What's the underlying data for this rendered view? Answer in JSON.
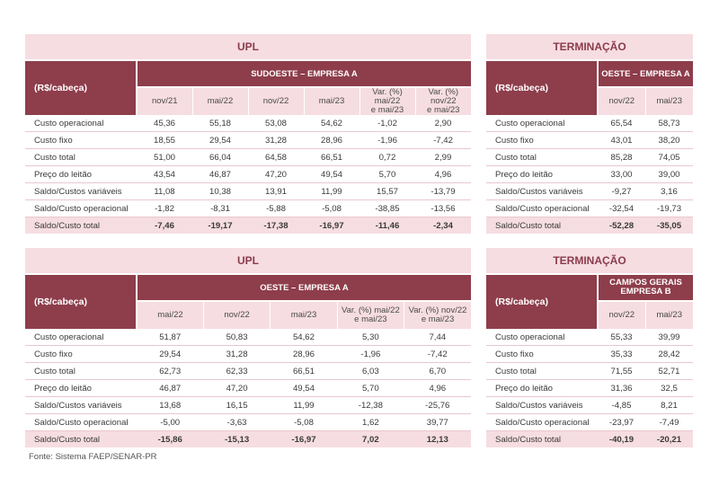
{
  "tables": [
    {
      "title": "UPL",
      "row_header": "(R$/cabeça)",
      "group": "SUDOESTE – EMPRESA A",
      "columns": [
        "nov/21",
        "mai/22",
        "nov/22",
        "mai/23",
        "Var. (%) mai/22\ne mai/23",
        "Var. (%) nov/22\ne mai/23"
      ],
      "rows": [
        {
          "label": "Custo operacional",
          "values": [
            "45,36",
            "55,18",
            "53,08",
            "54,62",
            "-1,02",
            "2,90"
          ]
        },
        {
          "label": "Custo fixo",
          "values": [
            "18,55",
            "29,54",
            "31,28",
            "28,96",
            "-1,96",
            "-7,42"
          ]
        },
        {
          "label": "Custo total",
          "values": [
            "51,00",
            "66,04",
            "64,58",
            "66,51",
            "0,72",
            "2,99"
          ]
        },
        {
          "label": "Preço do leitão",
          "values": [
            "43,54",
            "46,87",
            "47,20",
            "49,54",
            "5,70",
            "4,96"
          ]
        },
        {
          "label": "Saldo/Custos variáveis",
          "values": [
            "11,08",
            "10,38",
            "13,91",
            "11,99",
            "15,57",
            "-13,79"
          ]
        },
        {
          "label": "Saldo/Custo operacional",
          "values": [
            "-1,82",
            "-8,31",
            "-5,88",
            "-5,08",
            "-38,85",
            "-13,56"
          ]
        },
        {
          "label": "Saldo/Custo total",
          "values": [
            "-7,46",
            "-19,17",
            "-17,38",
            "-16,97",
            "-11,46",
            "-2,34"
          ]
        }
      ]
    },
    {
      "title": "TERMINAÇÃO",
      "row_header": "(R$/cabeça)",
      "group": "OESTE – EMPRESA A",
      "columns": [
        "nov/22",
        "mai/23"
      ],
      "rows": [
        {
          "label": "Custo operacional",
          "values": [
            "65,54",
            "58,73"
          ]
        },
        {
          "label": "Custo fixo",
          "values": [
            "43,01",
            "38,20"
          ]
        },
        {
          "label": "Custo total",
          "values": [
            "85,28",
            "74,05"
          ]
        },
        {
          "label": "Preço do leitão",
          "values": [
            "33,00",
            "39,00"
          ]
        },
        {
          "label": "Saldo/Custos variáveis",
          "values": [
            "-9,27",
            "3,16"
          ]
        },
        {
          "label": "Saldo/Custo operacional",
          "values": [
            "-32,54",
            "-19,73"
          ]
        },
        {
          "label": "Saldo/Custo total",
          "values": [
            "-52,28",
            "-35,05"
          ]
        }
      ]
    },
    {
      "title": "UPL",
      "row_header": "(R$/cabeça)",
      "group": "OESTE – EMPRESA A",
      "columns": [
        "mai/22",
        "nov/22",
        "mai/23",
        "Var. (%) mai/22\ne mai/23",
        "Var. (%) nov/22\ne mai/23"
      ],
      "rows": [
        {
          "label": "Custo operacional",
          "values": [
            "51,87",
            "50,83",
            "54,62",
            "5,30",
            "7,44"
          ]
        },
        {
          "label": "Custo fixo",
          "values": [
            "29,54",
            "31,28",
            "28,96",
            "-1,96",
            "-7,42"
          ]
        },
        {
          "label": "Custo total",
          "values": [
            "62,73",
            "62,33",
            "66,51",
            "6,03",
            "6,70"
          ]
        },
        {
          "label": "Preço do leitão",
          "values": [
            "46,87",
            "47,20",
            "49,54",
            "5,70",
            "4,96"
          ]
        },
        {
          "label": "Saldo/Custos variáveis",
          "values": [
            "13,68",
            "16,15",
            "11,99",
            "-12,38",
            "-25,76"
          ]
        },
        {
          "label": "Saldo/Custo operacional",
          "values": [
            "-5,00",
            "-3,63",
            "-5,08",
            "1,62",
            "39,77"
          ]
        },
        {
          "label": "Saldo/Custo total",
          "values": [
            "-15,86",
            "-15,13",
            "-16,97",
            "7,02",
            "12,13"
          ]
        }
      ]
    },
    {
      "title": "TERMINAÇÃO",
      "row_header": "(R$/cabeça)",
      "group": "CAMPOS GERAIS\nEMPRESA B",
      "columns": [
        "nov/22",
        "mai/23"
      ],
      "rows": [
        {
          "label": "Custo operacional",
          "values": [
            "55,33",
            "39,99"
          ]
        },
        {
          "label": "Custo fixo",
          "values": [
            "35,33",
            "28,42"
          ]
        },
        {
          "label": "Custo total",
          "values": [
            "71,55",
            "52,71"
          ]
        },
        {
          "label": "Preço do leitão",
          "values": [
            "31,36",
            "32,5"
          ]
        },
        {
          "label": "Saldo/Custos variáveis",
          "values": [
            "-4,85",
            "8,21"
          ]
        },
        {
          "label": "Saldo/Custo operacional",
          "values": [
            "-23,97",
            "-7,49"
          ]
        },
        {
          "label": "Saldo/Custo total",
          "values": [
            "-40,19",
            "-20,21"
          ]
        }
      ]
    }
  ],
  "source": "Fonte: Sistema FAEP/SENAR-PR",
  "colors": {
    "header_dark": "#8e3d4b",
    "header_light": "#f6dde2",
    "title_text": "#8a3c4a"
  }
}
